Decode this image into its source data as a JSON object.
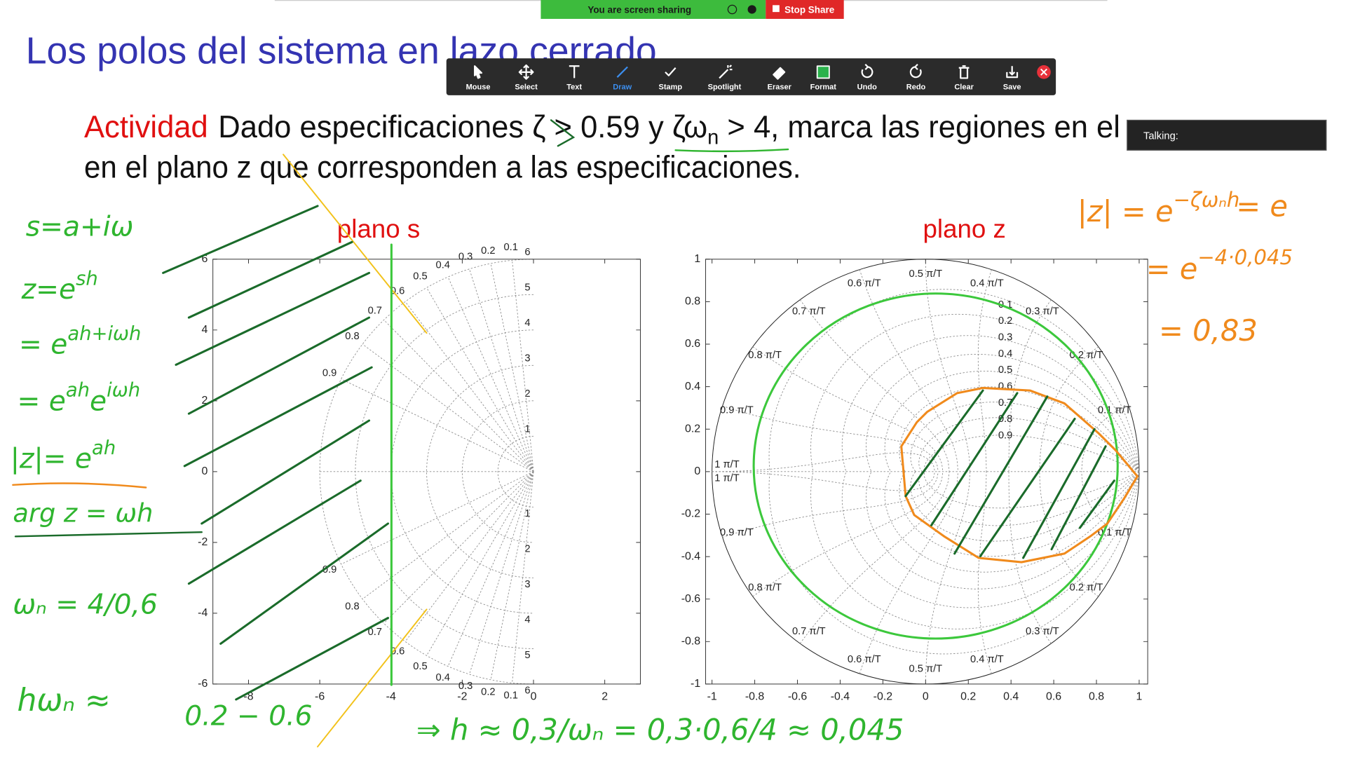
{
  "screen_share": {
    "status": "You are screen sharing",
    "stop": "Stop Share"
  },
  "toolbar": {
    "items": [
      "Mouse",
      "Select",
      "Text",
      "Draw",
      "Stamp",
      "Spotlight",
      "Eraser",
      "Format",
      "Undo",
      "Redo",
      "Clear",
      "Save"
    ],
    "active": 3
  },
  "talking_panel": {
    "label": "Talking:"
  },
  "slide": {
    "title": "Los polos del sistema en lazo cerrado",
    "activity": {
      "label": "Actividad",
      "line1": [
        "Dado especificaciones ζ > 0.59 y ζω",
        "n",
        " > 4, marca las regiones en el"
      ],
      "line2": "en el plano z que corresponden a las especificaciones."
    }
  },
  "plots": [
    {
      "title": "plano s",
      "grid": "sgrid",
      "xlim": [
        -9,
        3
      ],
      "ylim": [
        -6,
        6
      ],
      "xticks": [
        -8,
        -6,
        -4,
        -2,
        0,
        2
      ],
      "yticks": [
        -6,
        -4,
        -2,
        0,
        2,
        4,
        6
      ],
      "zeta": [
        0.1,
        0.2,
        0.3,
        0.4,
        0.5,
        0.6,
        0.7,
        0.8,
        0.9
      ],
      "wn": [
        1,
        2,
        3,
        4,
        5,
        6
      ]
    },
    {
      "title": "plano z",
      "grid": "zgrid",
      "xlim": [
        -1.03,
        1.04
      ],
      "ylim": [
        -1,
        1
      ],
      "xticks": [
        -1,
        -0.8,
        -0.6,
        -0.4,
        -0.2,
        0,
        0.2,
        0.4,
        0.6,
        0.8,
        1
      ],
      "yticks": [
        -1,
        -0.8,
        -0.6,
        -0.4,
        -0.2,
        0,
        0.2,
        0.4,
        0.6,
        0.8,
        1
      ],
      "zeta": [
        0.1,
        0.2,
        0.3,
        0.4,
        0.5,
        0.6,
        0.7,
        0.8,
        0.9
      ],
      "wn": [
        {
          "value": 0.1,
          "label": "0.1 π/T"
        },
        {
          "value": 0.2,
          "label": "0.2 π/T"
        },
        {
          "value": 0.3,
          "label": "0.3 π/T"
        },
        {
          "value": 0.4,
          "label": "0.4 π/T"
        },
        {
          "value": 0.5,
          "label": "0.5 π/T"
        },
        {
          "value": 0.6,
          "label": "0.6 π/T"
        },
        {
          "value": 0.7,
          "label": "0.7 π/T"
        },
        {
          "value": 0.8,
          "label": "0.8 π/T"
        },
        {
          "value": 0.9,
          "label": "0.9 π/T"
        },
        {
          "value": 1,
          "label": "1 π/T"
        }
      ]
    }
  ],
  "annotations": {
    "green": [
      [
        "s=a+iω"
      ],
      [
        "z=e",
        "sh"
      ],
      [
        "= e",
        "ah+iωh"
      ],
      [
        "= e",
        "ah",
        "e",
        "iωh"
      ],
      [
        "|z|= e",
        "ah"
      ],
      [
        "arg z = ωh"
      ],
      [
        "ωₙ = 4/0,6"
      ],
      [
        "hωₙ ≈"
      ],
      [
        "0.2 − 0.6"
      ],
      [
        "⇒ h ≈ 0,3/ωₙ = 0,3·0,6/4 ≈ 0,045"
      ]
    ],
    "orange": [
      [
        "|z| = e",
        "−ζωₙh"
      ],
      [
        "= e"
      ],
      [
        "= e",
        "−4·0,045"
      ],
      [
        "= 0,83"
      ]
    ]
  }
}
